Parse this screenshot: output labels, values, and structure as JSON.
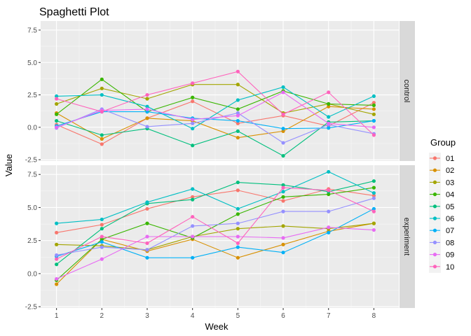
{
  "chart_data": {
    "type": "line",
    "title": "Spaghetti Plot",
    "xlabel": "Week",
    "ylabel": "Value",
    "x": [
      1,
      2,
      3,
      4,
      5,
      6,
      7,
      8
    ],
    "xlim": [
      0.65,
      8.55
    ],
    "ylim": [
      -2.6,
      8.2
    ],
    "yticks": [
      -2.5,
      0.0,
      2.5,
      5.0,
      7.5
    ],
    "ytick_labels": [
      "-2.5",
      "0.0",
      "2.5",
      "5.0",
      "7.5"
    ],
    "grid": true,
    "legend": {
      "title": "Group",
      "position": "right"
    },
    "group_colors": {
      "01": "#F8766D",
      "02": "#D89000",
      "03": "#A3A500",
      "04": "#39B600",
      "05": "#00BF7D",
      "06": "#00BFC4",
      "07": "#00B0F6",
      "08": "#9590FF",
      "09": "#E76BF3",
      "10": "#FF62BC"
    },
    "panels": [
      {
        "strip": "control",
        "series": [
          {
            "name": "01",
            "values": [
              0.2,
              -1.3,
              0.7,
              2.0,
              0.3,
              0.9,
              0.1,
              1.9
            ]
          },
          {
            "name": "02",
            "values": [
              1.1,
              -0.9,
              0.7,
              0.5,
              -0.8,
              -0.3,
              1.6,
              1.4
            ]
          },
          {
            "name": "03",
            "values": [
              1.8,
              3.0,
              2.2,
              3.3,
              3.3,
              1.1,
              1.8,
              1.0
            ]
          },
          {
            "name": "04",
            "values": [
              1.0,
              3.7,
              1.2,
              2.3,
              1.4,
              2.8,
              1.8,
              1.7
            ]
          },
          {
            "name": "05",
            "values": [
              0.5,
              -0.6,
              -0.1,
              -1.4,
              -0.3,
              -2.2,
              0.4,
              0.5
            ]
          },
          {
            "name": "06",
            "values": [
              2.4,
              2.5,
              1.6,
              -0.1,
              2.1,
              3.1,
              0.8,
              2.4
            ]
          },
          {
            "name": "07",
            "values": [
              0.1,
              1.2,
              1.2,
              0.7,
              0.5,
              -0.1,
              -0.05,
              0.5
            ]
          },
          {
            "name": "08",
            "values": [
              -0.05,
              1.4,
              0.05,
              0.3,
              1.1,
              -1.2,
              0.2,
              -0.5
            ]
          },
          {
            "name": "09",
            "values": [
              0.0,
              1.3,
              1.4,
              0.6,
              0.9,
              2.7,
              0.3,
              0.0
            ]
          },
          {
            "name": "10",
            "values": [
              2.2,
              1.2,
              2.5,
              3.4,
              4.3,
              1.0,
              2.7,
              -0.6
            ]
          }
        ]
      },
      {
        "strip": "experiment",
        "series": [
          {
            "name": "01",
            "values": [
              3.1,
              3.7,
              4.9,
              5.8,
              6.3,
              5.5,
              6.4,
              5.9
            ]
          },
          {
            "name": "02",
            "values": [
              -0.8,
              2.6,
              1.7,
              2.6,
              1.2,
              2.2,
              3.2,
              3.8
            ]
          },
          {
            "name": "03",
            "values": [
              2.2,
              2.1,
              1.8,
              2.8,
              3.4,
              3.6,
              3.4,
              3.8
            ]
          },
          {
            "name": "04",
            "values": [
              -0.5,
              2.6,
              3.8,
              2.7,
              4.5,
              5.8,
              6.0,
              6.5
            ]
          },
          {
            "name": "05",
            "values": [
              0.7,
              3.4,
              5.3,
              5.6,
              6.9,
              6.7,
              6.2,
              7.0
            ]
          },
          {
            "name": "06",
            "values": [
              3.8,
              4.1,
              5.4,
              6.4,
              4.9,
              6.2,
              7.7,
              6.1
            ]
          },
          {
            "name": "07",
            "values": [
              1.3,
              2.4,
              1.2,
              1.2,
              2.0,
              1.6,
              3.1,
              4.9
            ]
          },
          {
            "name": "08",
            "values": [
              1.4,
              2.0,
              1.8,
              3.6,
              3.8,
              4.7,
              4.7,
              5.7
            ]
          },
          {
            "name": "09",
            "values": [
              -0.4,
              1.1,
              2.8,
              2.8,
              2.8,
              2.7,
              3.5,
              3.3
            ]
          },
          {
            "name": "10",
            "values": [
              1.1,
              2.8,
              2.3,
              4.3,
              2.3,
              6.5,
              6.3,
              4.7
            ]
          }
        ]
      }
    ]
  }
}
